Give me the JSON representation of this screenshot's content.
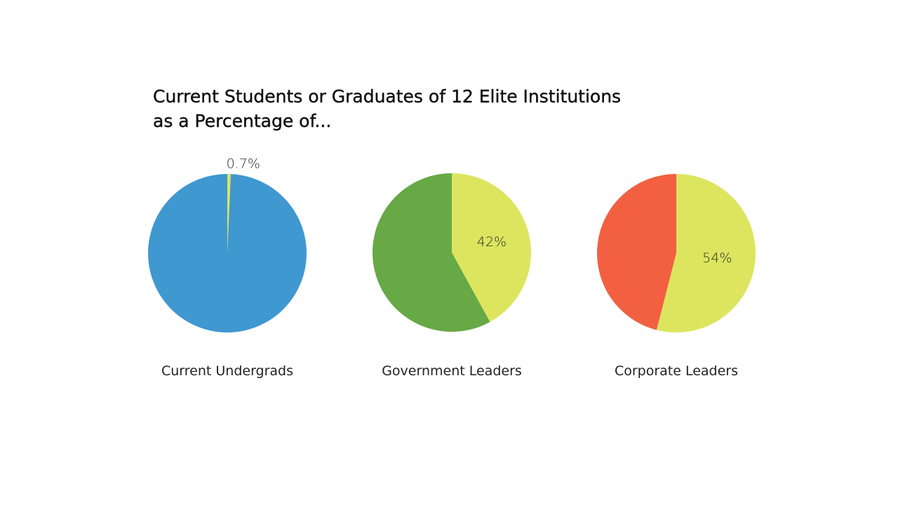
{
  "chart_data": {
    "type": "pie",
    "title_lines": [
      "Current Students or Graduates of 12 Elite Institutions",
      "as a Percentage of..."
    ],
    "pies": [
      {
        "name": "Current Undergrads",
        "slices": [
          {
            "value": 0.7,
            "label": "0.7%",
            "color": "#dde55f"
          },
          {
            "value": 99.3,
            "label": "",
            "color": "#3f98cf"
          }
        ]
      },
      {
        "name": "Government Leaders",
        "slices": [
          {
            "value": 42,
            "label": "42%",
            "color": "#dde55f"
          },
          {
            "value": 58,
            "label": "",
            "color": "#66a945"
          }
        ]
      },
      {
        "name": "Corporate Leaders",
        "slices": [
          {
            "value": 54,
            "label": "54%",
            "color": "#dde55f"
          },
          {
            "value": 46,
            "label": "",
            "color": "#f26041"
          }
        ]
      }
    ]
  }
}
